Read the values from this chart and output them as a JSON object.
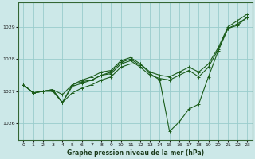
{
  "background_color": "#cce8e8",
  "plot_bg_color": "#cce8e8",
  "grid_color": "#99cccc",
  "line_color": "#1a5c1a",
  "title": "Graphe pression niveau de la mer (hPa)",
  "ylim": [
    1025.5,
    1029.75
  ],
  "xlim": [
    -0.5,
    23.5
  ],
  "yticks": [
    1026,
    1027,
    1028,
    1029
  ],
  "xticks": [
    0,
    1,
    2,
    3,
    4,
    5,
    6,
    7,
    8,
    9,
    10,
    11,
    12,
    13,
    14,
    15,
    16,
    17,
    18,
    19,
    20,
    21,
    22,
    23
  ],
  "series": [
    {
      "x": [
        0,
        1,
        2,
        3,
        4,
        5,
        6,
        7,
        8,
        9,
        10,
        11,
        12,
        13,
        14,
        15,
        16,
        17,
        18,
        19,
        20,
        21,
        22,
        23
      ],
      "y": [
        1027.2,
        1026.95,
        1027.0,
        1027.0,
        1026.65,
        1026.95,
        1027.1,
        1027.2,
        1027.35,
        1027.45,
        1027.75,
        1027.85,
        1027.85,
        1027.55,
        1027.35,
        1025.75,
        1026.05,
        1026.45,
        1026.6,
        1027.45,
        1028.25,
        1028.95,
        1029.05,
        1029.3
      ]
    },
    {
      "x": [
        0,
        1,
        2,
        3,
        4,
        5,
        6,
        7,
        8,
        9,
        10,
        11,
        12,
        13,
        14,
        15,
        16,
        17,
        18,
        19,
        20,
        21,
        22,
        23
      ],
      "y": [
        1027.2,
        1026.95,
        1027.0,
        1027.05,
        1026.65,
        1027.15,
        1027.25,
        1027.35,
        1027.5,
        1027.55,
        1027.85,
        1027.95,
        1027.75,
        1027.5,
        1027.4,
        1027.35,
        1027.5,
        1027.65,
        1027.45,
        1027.75,
        1028.3,
        1028.95,
        1029.1,
        1029.3
      ]
    },
    {
      "x": [
        0,
        1,
        2,
        3,
        4,
        5,
        6,
        7,
        8,
        9,
        10,
        11,
        12
      ],
      "y": [
        1027.2,
        1026.95,
        1027.0,
        1027.05,
        1026.9,
        1027.2,
        1027.3,
        1027.35,
        1027.5,
        1027.6,
        1027.9,
        1028.0,
        1027.8
      ]
    },
    {
      "x": [
        0,
        1,
        2,
        3,
        4,
        5,
        6,
        7,
        8,
        9,
        10,
        11,
        12,
        13,
        14,
        15,
        16,
        17,
        18,
        19,
        20,
        21,
        22,
        23
      ],
      "y": [
        1027.2,
        1026.95,
        1027.0,
        1027.05,
        1026.65,
        1027.2,
        1027.35,
        1027.45,
        1027.6,
        1027.65,
        1027.95,
        1028.05,
        1027.85,
        1027.6,
        1027.5,
        1027.45,
        1027.6,
        1027.75,
        1027.6,
        1027.85,
        1028.35,
        1029.0,
        1029.2,
        1029.4
      ]
    }
  ]
}
